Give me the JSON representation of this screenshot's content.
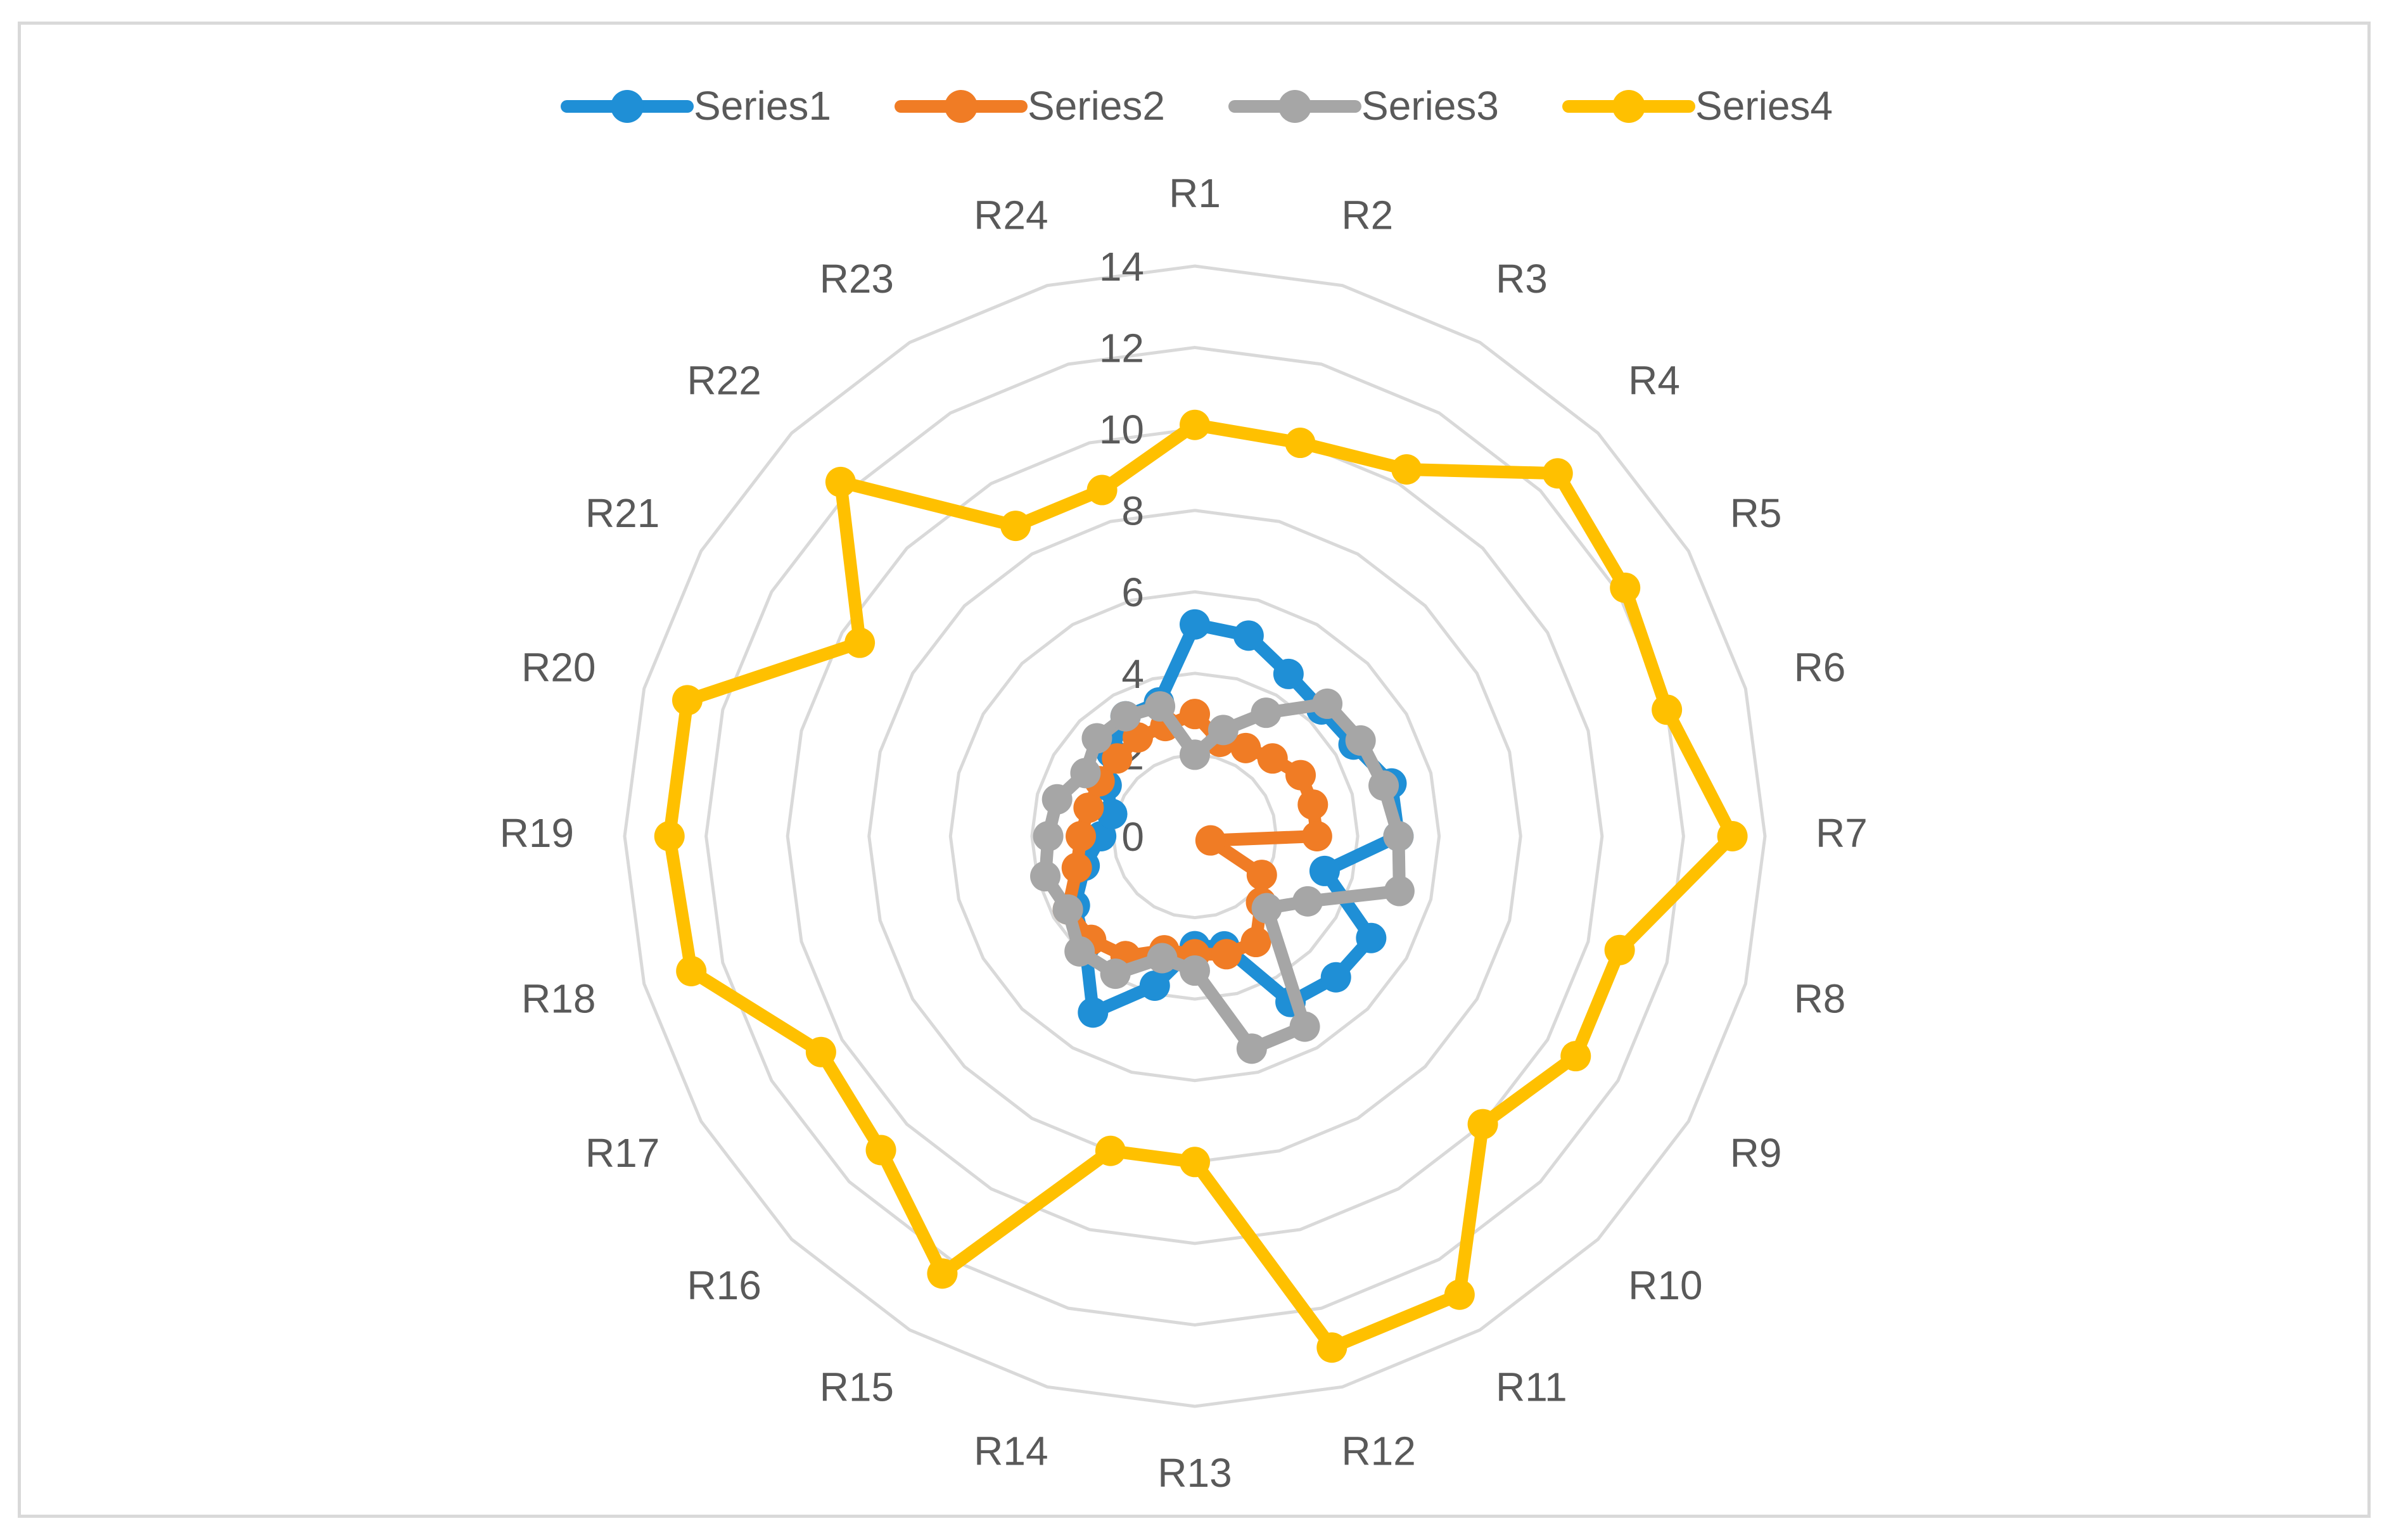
{
  "chart_data": {
    "type": "radar",
    "categories": [
      "R1",
      "R2",
      "R3",
      "R4",
      "R5",
      "R6",
      "R7",
      "R8",
      "R9",
      "R10",
      "R11",
      "R12",
      "R13",
      "R14",
      "R15",
      "R16",
      "R17",
      "R18",
      "R19",
      "R20",
      "R21",
      "R22",
      "R23",
      "R24"
    ],
    "rlim": [
      0,
      14
    ],
    "ticks": [
      "0",
      "2",
      "4",
      "6",
      "8",
      "10",
      "12",
      "14"
    ],
    "grid": true,
    "legend_position": "top",
    "series": [
      {
        "name": "Series1",
        "color": "#1f8fd6",
        "values": [
          5.2,
          5.1,
          4.6,
          4.4,
          4.5,
          5.0,
          5.0,
          3.3,
          5.0,
          4.9,
          4.7,
          2.8,
          2.7,
          3.8,
          5.0,
          3.8,
          3.4,
          2.8,
          2.3,
          2.1,
          2.5,
          2.9,
          3.4,
          3.4
        ]
      },
      {
        "name": "Series2",
        "color": "#f07c25",
        "values": [
          3.0,
          2.4,
          2.5,
          2.7,
          3.0,
          3.0,
          3.0,
          0.4,
          1.9,
          2.3,
          3.0,
          3.0,
          2.9,
          2.9,
          3.4,
          3.6,
          3.6,
          3.0,
          2.8,
          2.7,
          2.7,
          2.7,
          2.8,
          2.8
        ]
      },
      {
        "name": "Series3",
        "color": "#a6a6a6",
        "values": [
          2.0,
          2.7,
          3.5,
          4.6,
          4.7,
          4.8,
          5.0,
          5.2,
          3.2,
          2.5,
          5.4,
          5.4,
          3.3,
          3.1,
          3.9,
          4.0,
          3.6,
          3.8,
          3.6,
          3.5,
          3.1,
          3.4,
          3.4,
          3.3
        ]
      },
      {
        "name": "Series4",
        "color": "#ffc000",
        "values": [
          10.1,
          10.0,
          10.4,
          12.6,
          12.2,
          12.0,
          13.2,
          10.8,
          10.8,
          10.0,
          13.0,
          13.0,
          8.0,
          8.0,
          12.4,
          10.9,
          10.6,
          12.8,
          12.9,
          12.9,
          9.5,
          12.3,
          8.8,
          8.8
        ]
      }
    ]
  }
}
